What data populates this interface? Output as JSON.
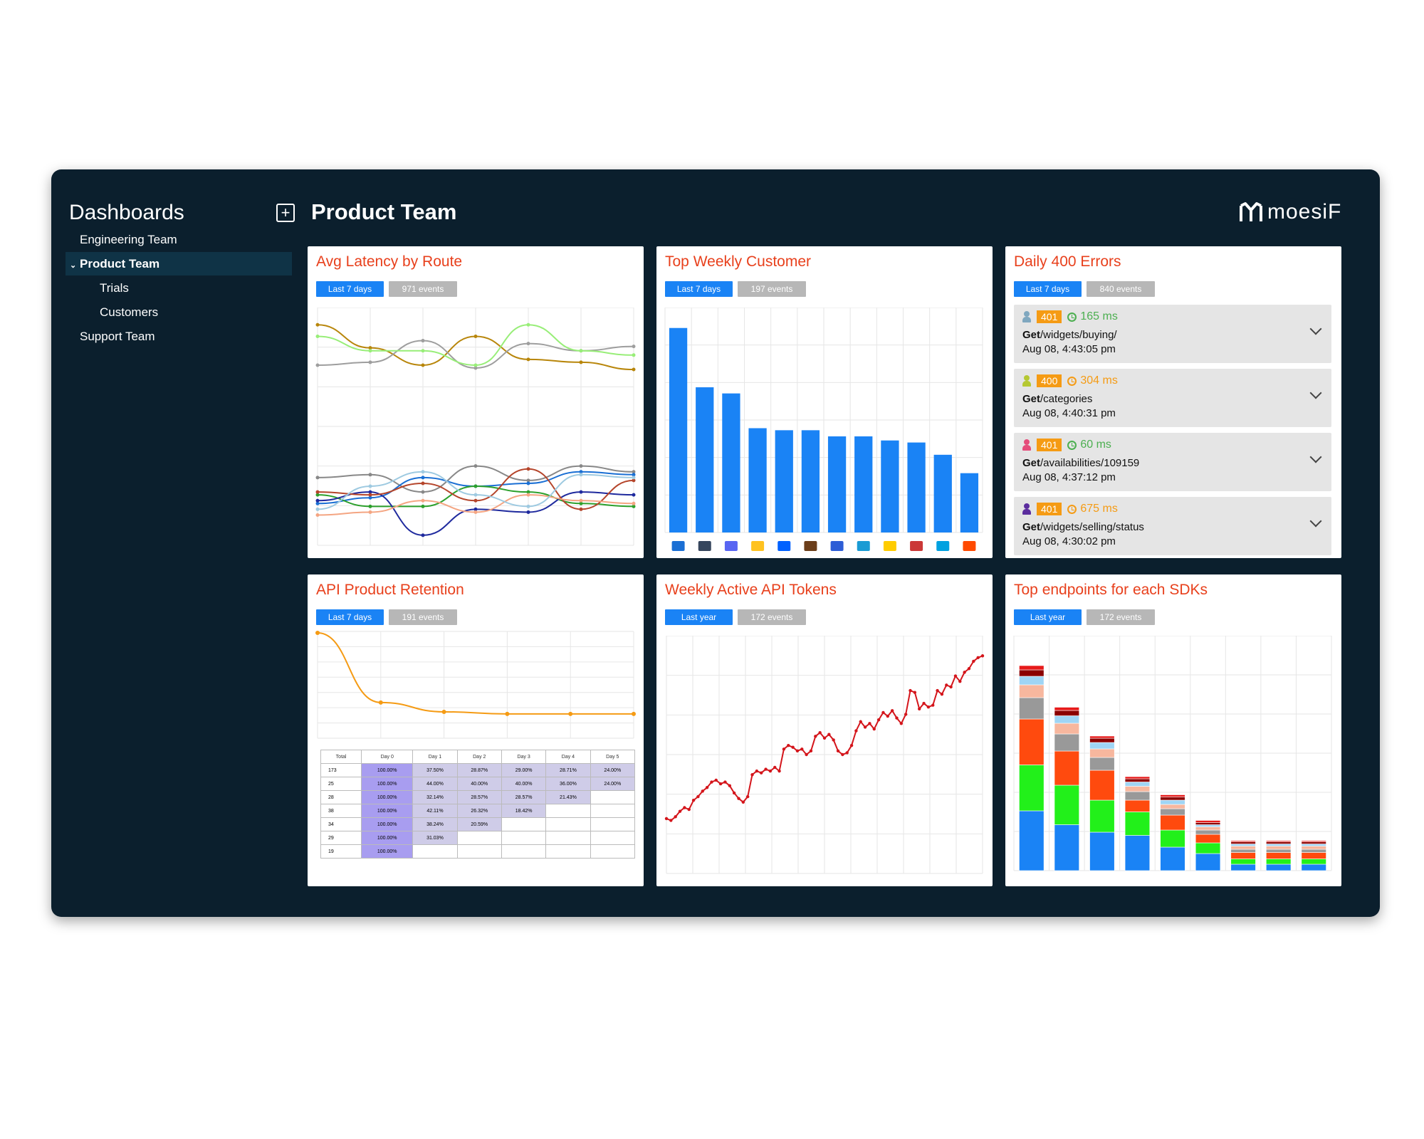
{
  "sidebar": {
    "title": "Dashboards",
    "items": [
      {
        "label": "Engineering Team"
      },
      {
        "label": "Product Team"
      },
      {
        "label": "Trials"
      },
      {
        "label": "Customers"
      },
      {
        "label": "Support Team"
      }
    ]
  },
  "header": {
    "title": "Product Team",
    "logo_text": "moesiF"
  },
  "colors": {
    "accent": "#e8401c",
    "brand_blue": "#1a83f5",
    "background": "#0b1f2d",
    "badge_orange": "#f59b14"
  },
  "cards": {
    "latency": {
      "title": "Avg Latency by Route",
      "range": "Last 7 days",
      "events": "971 events"
    },
    "customer": {
      "title": "Top Weekly Customer",
      "range": "Last 7 days",
      "events": "197 events",
      "logos": [
        "box",
        "tumblr",
        "discord",
        "walmart",
        "dropbox",
        "ups",
        "sentry",
        "bing",
        "dhl",
        "npm",
        "salesforce",
        "zapier"
      ]
    },
    "errors": {
      "title": "Daily 400 Errors",
      "range": "Last 7 days",
      "events": "840 events",
      "items": [
        {
          "code": "401",
          "latency": "165 ms",
          "method": "Get",
          "path": "/widgets/buying/",
          "time": "Aug 08, 4:43:05 pm",
          "user_color": "#7fa7bf",
          "latency_color": "#4caf50"
        },
        {
          "code": "400",
          "latency": "304 ms",
          "method": "Get",
          "path": "/categories",
          "time": "Aug 08, 4:40:31 pm",
          "user_color": "#b5c832",
          "latency_color": "#f59b14"
        },
        {
          "code": "401",
          "latency": "60 ms",
          "method": "Get",
          "path": "/availabilities/109159",
          "time": "Aug 08, 4:37:12 pm",
          "user_color": "#e54c7a",
          "latency_color": "#4caf50"
        },
        {
          "code": "401",
          "latency": "675 ms",
          "method": "Get",
          "path": "/widgets/selling/status",
          "time": "Aug 08, 4:30:02 pm",
          "user_color": "#5b2d9e",
          "latency_color": "#f59b14"
        }
      ]
    },
    "retention": {
      "title": "API Product Retention",
      "range": "Last 7 days",
      "events": "191 events",
      "table": {
        "headers": [
          "Total",
          "Day 0",
          "Day 1",
          "Day 2",
          "Day 3",
          "Day 4",
          "Day 5"
        ],
        "rows": [
          [
            "173",
            "100.00%",
            "37.50%",
            "28.87%",
            "29.00%",
            "28.71%",
            "24.00%"
          ],
          [
            "25",
            "100.00%",
            "44.00%",
            "40.00%",
            "40.00%",
            "36.00%",
            "24.00%"
          ],
          [
            "28",
            "100.00%",
            "32.14%",
            "28.57%",
            "28.57%",
            "21.43%",
            ""
          ],
          [
            "38",
            "100.00%",
            "42.11%",
            "26.32%",
            "18.42%",
            "",
            ""
          ],
          [
            "34",
            "100.00%",
            "38.24%",
            "20.59%",
            "",
            "",
            ""
          ],
          [
            "29",
            "100.00%",
            "31.03%",
            "",
            "",
            "",
            ""
          ],
          [
            "19",
            "100.00%",
            "",
            "",
            "",
            "",
            ""
          ]
        ]
      }
    },
    "tokens": {
      "title": "Weekly Active API Tokens",
      "range": "Last year",
      "events": "172 events"
    },
    "sdks": {
      "title": "Top endpoints for each SDKs",
      "range": "Last year",
      "events": "172 events"
    }
  },
  "chart_data": [
    {
      "type": "line",
      "title": "Avg Latency by Route",
      "x": [
        0,
        1,
        2,
        3,
        4,
        5,
        6
      ],
      "series": [
        {
          "color": "#b8860b",
          "values": [
            88,
            72,
            60,
            80,
            64,
            62,
            57
          ]
        },
        {
          "color": "#9e9e9e",
          "values": [
            60,
            62,
            77,
            58,
            75,
            70,
            73
          ]
        },
        {
          "color": "#98ee78",
          "values": [
            80,
            70,
            70,
            60,
            88,
            70,
            67
          ]
        },
        {
          "color": "#888888",
          "values": [
            -18,
            -16,
            -28,
            -10,
            -20,
            -10,
            -14
          ]
        },
        {
          "color": "#1a6fd4",
          "values": [
            -36,
            -32,
            -18,
            -24,
            -22,
            -14,
            -16
          ]
        },
        {
          "color": "#2ca02c",
          "values": [
            -30,
            -38,
            -38,
            -24,
            -28,
            -36,
            -38
          ]
        },
        {
          "color": "#1f2a9e",
          "values": [
            -34,
            -28,
            -58,
            -40,
            -42,
            -28,
            -30
          ]
        },
        {
          "color": "#b5452b",
          "values": [
            -28,
            -30,
            -22,
            -34,
            -12,
            -40,
            -20
          ]
        },
        {
          "color": "#f4a582",
          "values": [
            -44,
            -42,
            -34,
            -42,
            -30,
            -34,
            -36
          ]
        },
        {
          "color": "#9ecae1",
          "values": [
            -40,
            -24,
            -14,
            -30,
            -38,
            -16,
            -18
          ]
        }
      ]
    },
    {
      "type": "bar",
      "title": "Top Weekly Customer",
      "categories": [
        "box",
        "tumblr",
        "discord",
        "walmart",
        "dropbox",
        "ups",
        "sentry",
        "bing",
        "dhl",
        "npm",
        "salesforce",
        "zapier"
      ],
      "values": [
        100,
        71,
        68,
        51,
        50,
        50,
        47,
        47,
        45,
        44,
        38,
        29
      ],
      "color": "#1a83f5"
    },
    {
      "type": "line",
      "title": "API Product Retention",
      "x": [
        0,
        1,
        2,
        3,
        4,
        5
      ],
      "values": [
        100,
        33,
        24,
        22,
        22,
        22
      ],
      "color": "#f59b14"
    },
    {
      "type": "line",
      "title": "Weekly Active API Tokens",
      "values": [
        10,
        9,
        11,
        14,
        16,
        15,
        20,
        22,
        25,
        27,
        30,
        31,
        29,
        30,
        28,
        24,
        21,
        19,
        22,
        34,
        36,
        35,
        37,
        36,
        38,
        36,
        48,
        50,
        49,
        47,
        48,
        45,
        47,
        55,
        57,
        54,
        56,
        53,
        47,
        45,
        46,
        50,
        58,
        63,
        60,
        62,
        59,
        64,
        68,
        66,
        69,
        65,
        62,
        67,
        80,
        79,
        70,
        73,
        71,
        72,
        80,
        78,
        83,
        82,
        88,
        85,
        90,
        92,
        96,
        98,
        99
      ]
    },
    {
      "type": "bar",
      "title": "Top endpoints for each SDKs",
      "stacked": true,
      "categories": [
        "1",
        "2",
        "3",
        "4",
        "5",
        "6",
        "7",
        "8",
        "9"
      ],
      "series": [
        {
          "color": "#1a83f5",
          "values": [
            56,
            43,
            36,
            33,
            22,
            16,
            6,
            6,
            6
          ]
        },
        {
          "color": "#22f01a",
          "values": [
            43,
            37,
            30,
            22,
            16,
            10,
            5,
            5,
            5
          ]
        },
        {
          "color": "#ff4a0e",
          "values": [
            43,
            32,
            28,
            11,
            14,
            8,
            6,
            6,
            6
          ]
        },
        {
          "color": "#999999",
          "values": [
            20,
            16,
            12,
            8,
            6,
            4,
            3,
            3,
            3
          ]
        },
        {
          "color": "#f7b79e",
          "values": [
            12,
            10,
            8,
            5,
            4,
            3,
            3,
            3,
            3
          ]
        },
        {
          "color": "#9fd5f5",
          "values": [
            8,
            7,
            6,
            4,
            4,
            2,
            2,
            2,
            2
          ]
        },
        {
          "color": "#8b0000",
          "values": [
            6,
            5,
            4,
            3,
            3,
            2,
            2,
            2,
            2
          ]
        },
        {
          "color": "#e61a1a",
          "values": [
            4,
            3,
            2,
            2,
            2,
            2,
            1,
            1,
            1
          ]
        }
      ]
    }
  ]
}
